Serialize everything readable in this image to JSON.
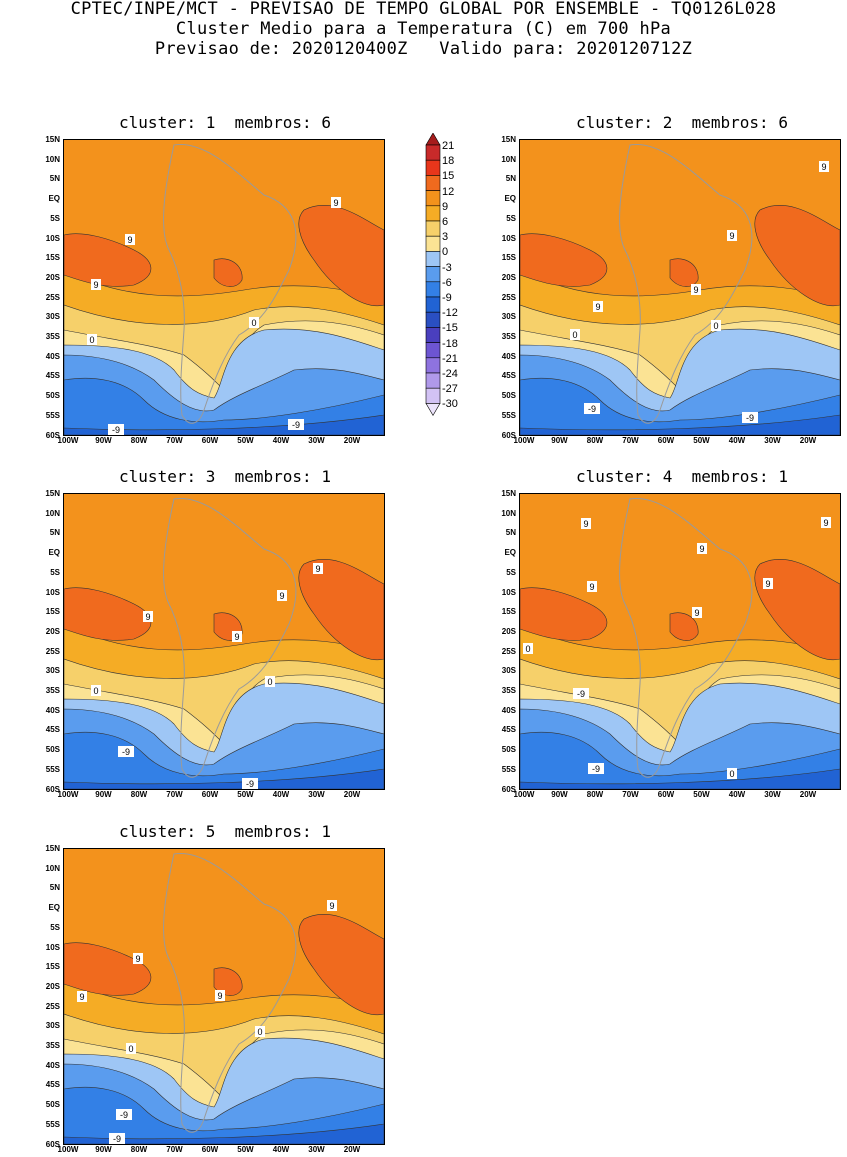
{
  "header": {
    "line1": "CPTEC/INPE/MCT - PREVISAO DE TEMPO GLOBAL POR ENSEMBLE - TQ0126L028",
    "line2": "Cluster Medio para a Temperatura (C) em 700 hPa",
    "line3": "Previsao de: 2020120400Z   Valido para: 2020120712Z"
  },
  "panels": [
    {
      "title": "cluster: 1  membros: 6",
      "labels": [
        "9",
        "9",
        "9",
        "0",
        "-9",
        "-9",
        "0"
      ]
    },
    {
      "title": "cluster: 2  membros: 6",
      "labels": [
        "9",
        "9",
        "9",
        "9",
        "0",
        "-9",
        "-9",
        "0"
      ]
    },
    {
      "title": "cluster: 3  membros: 1",
      "labels": [
        "9",
        "9",
        "9",
        "9",
        "0",
        "-9",
        "-9",
        "0"
      ]
    },
    {
      "title": "cluster: 4  membros: 1",
      "labels": [
        "9",
        "9",
        "9",
        "9",
        "9",
        "9",
        "0",
        "-9",
        "-9",
        "0"
      ]
    },
    {
      "title": "cluster: 5  membros: 1",
      "labels": [
        "9",
        "9",
        "9",
        "9",
        "0",
        "-9",
        "-9",
        "0"
      ]
    }
  ],
  "axes": {
    "lat_labels": [
      "15N",
      "10N",
      "5N",
      "EQ",
      "5S",
      "10S",
      "15S",
      "20S",
      "25S",
      "30S",
      "35S",
      "40S",
      "45S",
      "50S",
      "55S",
      "60S"
    ],
    "lon_labels": [
      "100W",
      "90W",
      "80W",
      "70W",
      "60W",
      "50W",
      "40W",
      "30W",
      "20W"
    ]
  },
  "colorbar": {
    "labels": [
      "21",
      "18",
      "15",
      "12",
      "9",
      "6",
      "3",
      "0",
      "-3",
      "-6",
      "-9",
      "-12",
      "-15",
      "-18",
      "-21",
      "-24",
      "-27",
      "-30"
    ],
    "colors": [
      "#a51c1c",
      "#c82a2a",
      "#e8361b",
      "#f06a1e",
      "#f3921c",
      "#f5ac25",
      "#f6d06a",
      "#fbe394",
      "#9ec6f5",
      "#5a9cee",
      "#3380e6",
      "#2163d4",
      "#2a4fc2",
      "#4a3fbe",
      "#6d55d2",
      "#8e73df",
      "#b099ea",
      "#d2c2f4",
      "#ece4fb"
    ]
  }
}
